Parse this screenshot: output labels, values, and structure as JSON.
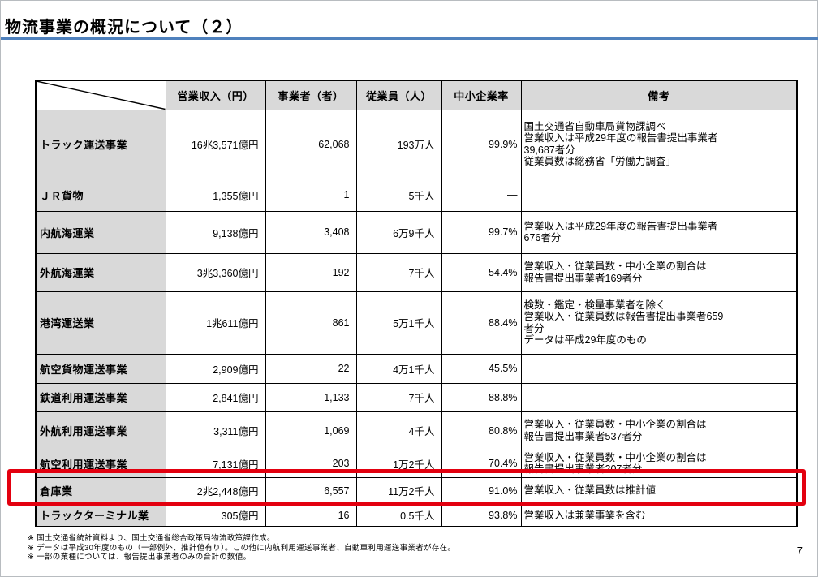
{
  "title": "物流事業の概況について（２）",
  "page_number": "7",
  "colors": {
    "accent_line": "#4f81bd",
    "highlight_box": "#e3000f",
    "header_background": "#d9d9d9"
  },
  "table": {
    "headers": {
      "revenue": "営業収入（円）",
      "operators": "事業者（者）",
      "employees": "従業員（人）",
      "sme_rate": "中小企業率",
      "remarks": "備考"
    },
    "rows": [
      {
        "name": "トラック運送事業",
        "revenue": "16兆3,571億円",
        "operators": "62,068",
        "employees": "193万人",
        "sme_rate": "99.9%",
        "remarks": "国土交通省自動車局貨物課調べ\n営業収入は平成29年度の報告書提出事業者\n39,687者分\n従業員数は総務省「労働力調査」"
      },
      {
        "name": "ＪＲ貨物",
        "revenue": "1,355億円",
        "operators": "1",
        "employees": "5千人",
        "sme_rate": "—",
        "remarks": ""
      },
      {
        "name": "内航海運業",
        "revenue": "9,138億円",
        "operators": "3,408",
        "employees": "6万9千人",
        "sme_rate": "99.7%",
        "remarks": "営業収入は平成29年度の報告書提出事業者\n676者分"
      },
      {
        "name": "外航海運業",
        "revenue": "3兆3,360億円",
        "operators": "192",
        "employees": "7千人",
        "sme_rate": "54.4%",
        "remarks": "営業収入・従業員数・中小企業の割合は\n報告書提出事業者169者分"
      },
      {
        "name": "港湾運送業",
        "revenue": "1兆611億円",
        "operators": "861",
        "employees": "5万1千人",
        "sme_rate": "88.4%",
        "remarks": "検数・鑑定・検量事業者を除く\n営業収入・従業員数は報告書提出事業者659\n者分\nデータは平成29年度のもの"
      },
      {
        "name": "航空貨物運送事業",
        "revenue": "2,909億円",
        "operators": "22",
        "employees": "4万1千人",
        "sme_rate": "45.5%",
        "remarks": ""
      },
      {
        "name": "鉄道利用運送事業",
        "revenue": "2,841億円",
        "operators": "1,133",
        "employees": "7千人",
        "sme_rate": "88.8%",
        "remarks": ""
      },
      {
        "name": "外航利用運送事業",
        "revenue": "3,311億円",
        "operators": "1,069",
        "employees": "4千人",
        "sme_rate": "80.8%",
        "remarks": "営業収入・従業員数・中小企業の割合は\n報告書提出事業者537者分"
      },
      {
        "name": "航空利用運送事業",
        "revenue": "7,131億円",
        "operators": "203",
        "employees": "1万2千人",
        "sme_rate": "70.4%",
        "remarks": "営業収入・従業員数・中小企業の割合は\n報告書提出事業者207者分"
      },
      {
        "name": "倉庫業",
        "revenue": "2兆2,448億円",
        "operators": "6,557",
        "employees": "11万2千人",
        "sme_rate": "91.0%",
        "remarks": "営業収入・従業員数は推計値",
        "highlighted": true
      },
      {
        "name": "トラックターミナル業",
        "revenue": "305億円",
        "operators": "16",
        "employees": "0.5千人",
        "sme_rate": "93.8%",
        "remarks": "営業収入は兼業事業を含む"
      }
    ]
  },
  "footnotes": [
    "※ 国土交通省統計資料より、国土交通省総合政策局物流政策課作成。",
    "※ データは平成30年度のもの（一部例外、推計値有り）。この他に内航利用運送事業者、自動車利用運送事業者が存在。",
    "※ 一部の業種については、報告提出事業者のみの合計の数値。"
  ]
}
